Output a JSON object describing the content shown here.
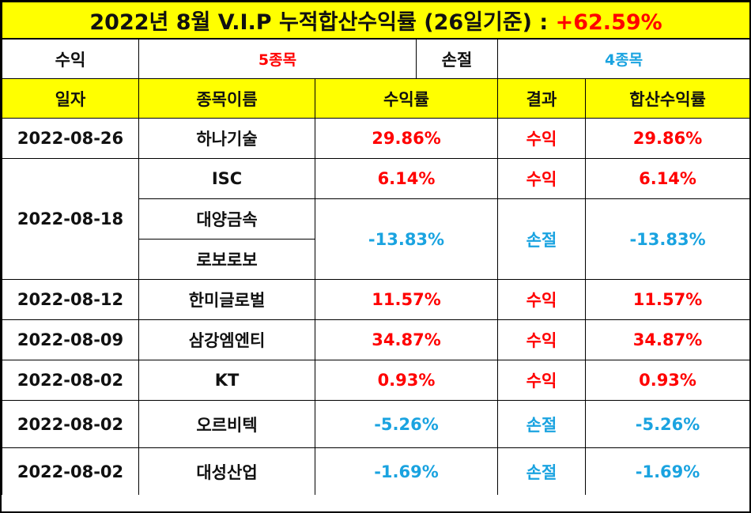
{
  "title": {
    "text": "2022년 8월 V.I.P 누적합산수익률 (26일기준) : ",
    "total": "+62.59%"
  },
  "summary": {
    "profit_label": "수익",
    "profit_count": "5종목",
    "loss_label": "손절",
    "loss_count": "4종목"
  },
  "columns": [
    "일자",
    "종목이름",
    "수익률",
    "결과",
    "합산수익률"
  ],
  "rows": [
    {
      "date": "2022-08-26",
      "name": "하나기술",
      "rate": "29.86%",
      "result": "수익",
      "sum": "29.86%"
    },
    {
      "date": "2022-08-18",
      "name": "ISC",
      "rate": "6.14%",
      "result": "수익",
      "sum": "6.14%"
    },
    {
      "name": "대양금속"
    },
    {
      "name": "로보로보",
      "rate": "-13.83%",
      "result": "손절",
      "sum": "-13.83%"
    },
    {
      "date": "2022-08-12",
      "name": "한미글로벌",
      "rate": "11.57%",
      "result": "수익",
      "sum": "11.57%"
    },
    {
      "date": "2022-08-09",
      "name": "삼강엠엔티",
      "rate": "34.87%",
      "result": "수익",
      "sum": "34.87%"
    },
    {
      "date": "2022-08-02",
      "name": "KT",
      "rate": "0.93%",
      "result": "수익",
      "sum": "0.93%"
    },
    {
      "date": "2022-08-02",
      "name": "오르비텍",
      "rate": "-5.26%",
      "result": "손절",
      "sum": "-5.26%"
    },
    {
      "date": "2022-08-02",
      "name": "대성산업",
      "rate": "-1.69%",
      "result": "손절",
      "sum": "-1.69%"
    }
  ],
  "colors": {
    "header_bg": "#ffff00",
    "profit": "#ff0000",
    "loss": "#1aa3e0"
  }
}
